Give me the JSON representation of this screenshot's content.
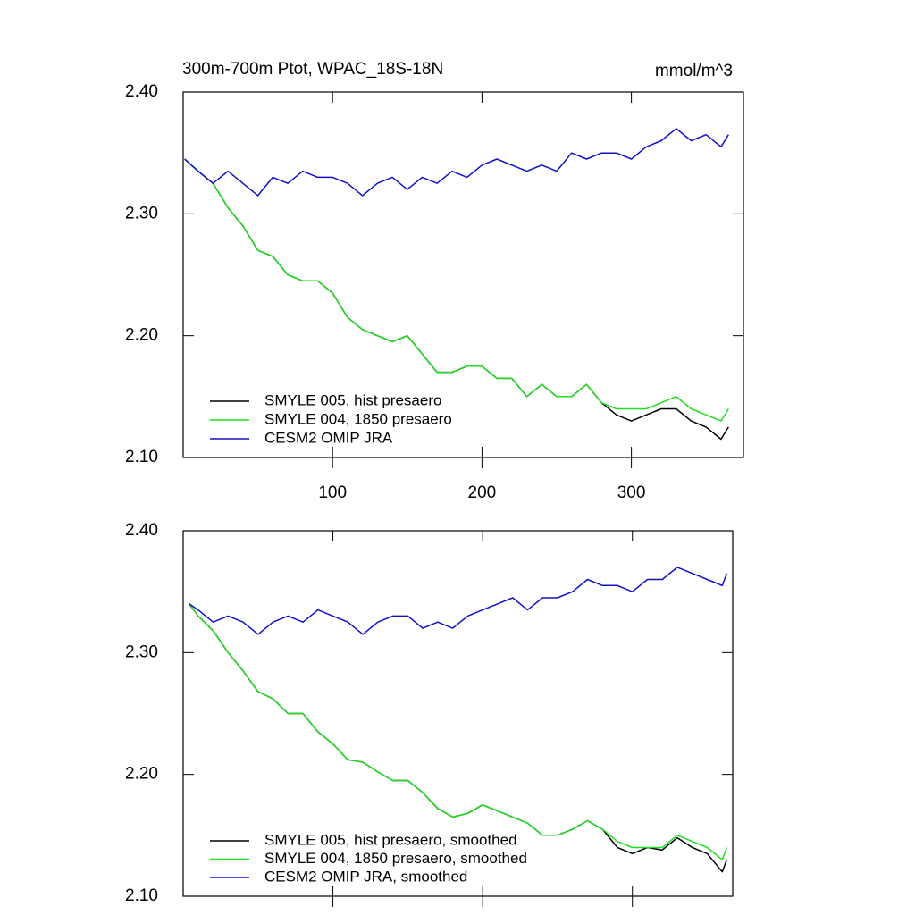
{
  "chart_data": [
    {
      "type": "line",
      "title": "300m-700m Ptot, WPAC_18S-18N",
      "unit_label": "mmol/m^3",
      "x": [
        1,
        10,
        20,
        30,
        40,
        50,
        60,
        70,
        80,
        90,
        100,
        110,
        120,
        130,
        140,
        150,
        160,
        170,
        180,
        190,
        200,
        210,
        220,
        230,
        240,
        250,
        260,
        270,
        280,
        290,
        300,
        310,
        320,
        330,
        340,
        350,
        360,
        365
      ],
      "xlim": [
        0,
        375
      ],
      "xticks": [
        100,
        200,
        300
      ],
      "ylim": [
        2.1,
        2.4
      ],
      "yticks": [
        {
          "value": 2.1,
          "label": "2.10"
        },
        {
          "value": 2.2,
          "label": "2.20"
        },
        {
          "value": 2.3,
          "label": "2.30"
        },
        {
          "value": 2.4,
          "label": "2.40"
        }
      ],
      "series": [
        {
          "name": "SMYLE 005, hist presaero",
          "color": "#000000",
          "values": [
            2.345,
            2.335,
            2.325,
            2.305,
            2.29,
            2.27,
            2.265,
            2.25,
            2.245,
            2.245,
            2.235,
            2.215,
            2.205,
            2.2,
            2.195,
            2.2,
            2.185,
            2.17,
            2.17,
            2.175,
            2.175,
            2.165,
            2.165,
            2.15,
            2.16,
            2.15,
            2.15,
            2.16,
            2.145,
            2.135,
            2.13,
            2.135,
            2.14,
            2.14,
            2.13,
            2.125,
            2.115,
            2.125
          ]
        },
        {
          "name": "SMYLE 004, 1850 presaero",
          "color": "#22dd22",
          "values": [
            2.345,
            2.335,
            2.325,
            2.305,
            2.29,
            2.27,
            2.265,
            2.25,
            2.245,
            2.245,
            2.235,
            2.215,
            2.205,
            2.2,
            2.195,
            2.2,
            2.185,
            2.17,
            2.17,
            2.175,
            2.175,
            2.165,
            2.165,
            2.15,
            2.16,
            2.15,
            2.15,
            2.16,
            2.145,
            2.14,
            2.14,
            2.14,
            2.145,
            2.15,
            2.14,
            2.135,
            2.13,
            2.14
          ]
        },
        {
          "name": "CESM2 OMIP JRA",
          "color": "#1010cc",
          "values": [
            2.345,
            2.335,
            2.325,
            2.335,
            2.325,
            2.315,
            2.33,
            2.325,
            2.335,
            2.33,
            2.33,
            2.325,
            2.315,
            2.325,
            2.33,
            2.32,
            2.33,
            2.325,
            2.335,
            2.33,
            2.34,
            2.345,
            2.34,
            2.335,
            2.34,
            2.335,
            2.35,
            2.345,
            2.35,
            2.35,
            2.345,
            2.355,
            2.36,
            2.37,
            2.36,
            2.365,
            2.355,
            2.365
          ]
        }
      ]
    },
    {
      "type": "line",
      "x": [
        4,
        10,
        20,
        30,
        40,
        50,
        60,
        70,
        80,
        90,
        100,
        110,
        120,
        130,
        140,
        150,
        160,
        170,
        180,
        190,
        200,
        210,
        220,
        230,
        240,
        250,
        260,
        270,
        280,
        290,
        300,
        310,
        320,
        330,
        340,
        350,
        360,
        363
      ],
      "xlim": [
        0,
        367
      ],
      "xticks": [
        100,
        200,
        300
      ],
      "ylim": [
        2.1,
        2.4
      ],
      "yticks": [
        {
          "value": 2.1,
          "label": "2.10"
        },
        {
          "value": 2.2,
          "label": "2.20"
        },
        {
          "value": 2.3,
          "label": "2.30"
        },
        {
          "value": 2.4,
          "label": "2.40"
        }
      ],
      "series": [
        {
          "name": "SMYLE 005, hist presaero, smoothed",
          "color": "#000000",
          "values": [
            2.34,
            2.33,
            2.318,
            2.3,
            2.285,
            2.268,
            2.262,
            2.25,
            2.25,
            2.235,
            2.225,
            2.212,
            2.21,
            2.202,
            2.195,
            2.195,
            2.185,
            2.172,
            2.165,
            2.168,
            2.175,
            2.17,
            2.165,
            2.16,
            2.15,
            2.15,
            2.155,
            2.162,
            2.155,
            2.14,
            2.135,
            2.14,
            2.138,
            2.148,
            2.14,
            2.135,
            2.12,
            2.13
          ]
        },
        {
          "name": "SMYLE 004, 1850 presaero, smoothed",
          "color": "#22dd22",
          "values": [
            2.34,
            2.33,
            2.318,
            2.3,
            2.285,
            2.268,
            2.262,
            2.25,
            2.25,
            2.235,
            2.225,
            2.212,
            2.21,
            2.202,
            2.195,
            2.195,
            2.185,
            2.172,
            2.165,
            2.168,
            2.175,
            2.17,
            2.165,
            2.16,
            2.15,
            2.15,
            2.155,
            2.162,
            2.155,
            2.145,
            2.14,
            2.14,
            2.14,
            2.15,
            2.145,
            2.14,
            2.13,
            2.14
          ]
        },
        {
          "name": "CESM2 OMIP JRA, smoothed",
          "color": "#1010cc",
          "values": [
            2.34,
            2.335,
            2.325,
            2.33,
            2.325,
            2.315,
            2.325,
            2.33,
            2.325,
            2.335,
            2.33,
            2.325,
            2.315,
            2.325,
            2.33,
            2.33,
            2.32,
            2.325,
            2.32,
            2.33,
            2.335,
            2.34,
            2.345,
            2.335,
            2.345,
            2.345,
            2.35,
            2.36,
            2.355,
            2.355,
            2.35,
            2.36,
            2.36,
            2.37,
            2.365,
            2.36,
            2.355,
            2.365
          ]
        }
      ]
    }
  ]
}
